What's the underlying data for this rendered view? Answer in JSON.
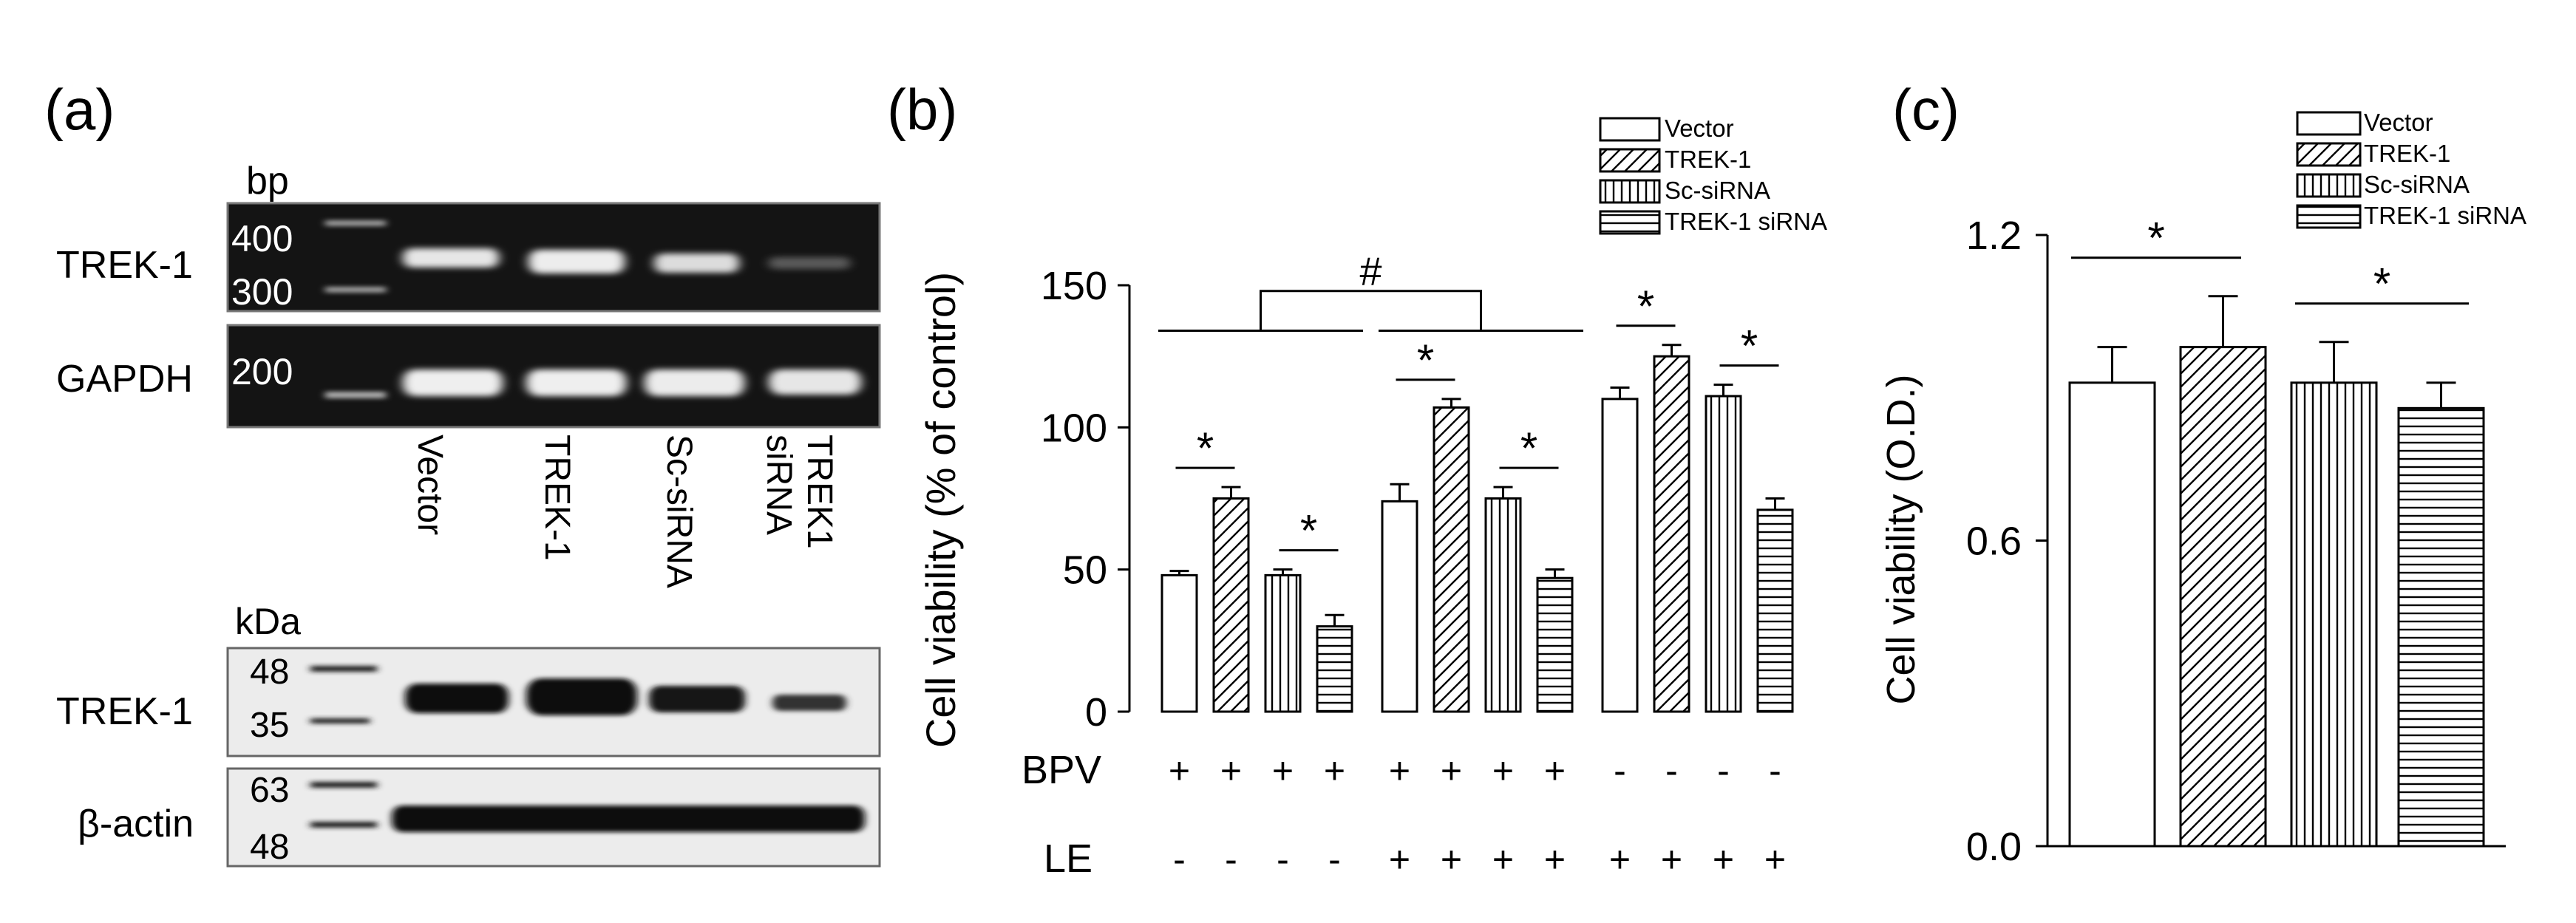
{
  "panels": {
    "a": {
      "label": "(a)",
      "pcr": {
        "unit": "bp",
        "markers": [
          "400",
          "300",
          "200"
        ],
        "rows": [
          "TREK-1",
          "GAPDH"
        ]
      },
      "lanes": [
        "Vector",
        "TREK-1",
        "Sc-siRNA",
        "TREK1\nsiRNA"
      ],
      "western": {
        "unit": "kDa",
        "markers_top": [
          "48",
          "35"
        ],
        "markers_bottom": [
          "63",
          "48"
        ],
        "rows": [
          "TREK-1",
          "β-actin"
        ]
      }
    }
  },
  "colors": {
    "ink": "#000000",
    "background": "#ffffff",
    "gel_bg": "#141414",
    "gel_band": "#e8e8e8",
    "blot_bg": "#ececec",
    "blot_band": "#111111"
  },
  "chart_data": [
    {
      "panel": "(b)",
      "type": "bar",
      "ylabel": "Cell viability (% of control)",
      "ylim": [
        0,
        150
      ],
      "yticks": [
        0,
        50,
        100,
        150
      ],
      "groups": [
        "BPV",
        "BPV + LE",
        "LE"
      ],
      "series": [
        {
          "name": "Vector",
          "pattern": "empty",
          "values": [
            48,
            74,
            110
          ],
          "errors": [
            1.5,
            6,
            4
          ]
        },
        {
          "name": "TREK-1",
          "pattern": "diagonal",
          "values": [
            75,
            107,
            125
          ],
          "errors": [
            4,
            3,
            4
          ]
        },
        {
          "name": "Sc-siRNA",
          "pattern": "vertical",
          "values": [
            48,
            75,
            111
          ],
          "errors": [
            2,
            4,
            4
          ]
        },
        {
          "name": "TREK-1 siRNA",
          "pattern": "horizontal",
          "values": [
            30,
            47,
            71
          ],
          "errors": [
            4,
            3,
            4
          ]
        }
      ],
      "treatments": [
        {
          "label": "BPV",
          "signs": [
            [
              "+",
              "+",
              "+",
              "+"
            ],
            [
              "+",
              "+",
              "+",
              "+"
            ],
            [
              "-",
              "-",
              "-",
              "-"
            ]
          ]
        },
        {
          "label": "LE",
          "signs": [
            [
              "-",
              "-",
              "-",
              "-"
            ],
            [
              "+",
              "+",
              "+",
              "+"
            ],
            [
              "+",
              "+",
              "+",
              "+"
            ]
          ]
        }
      ],
      "annotations": {
        "significance": "*",
        "between_groups": "#"
      },
      "legend_position": "top-right"
    },
    {
      "panel": "(c)",
      "type": "bar",
      "ylabel": "Cell viability (O.D.)",
      "ylim": [
        0,
        1.2
      ],
      "yticks": [
        "0.0",
        "0.6",
        "1.2"
      ],
      "series": [
        {
          "name": "Vector",
          "pattern": "empty",
          "value": 0.91,
          "error": 0.07
        },
        {
          "name": "TREK-1",
          "pattern": "diagonal",
          "value": 0.98,
          "error": 0.1
        },
        {
          "name": "Sc-siRNA",
          "pattern": "vertical",
          "value": 0.91,
          "error": 0.08
        },
        {
          "name": "TREK-1 siRNA",
          "pattern": "horizontal",
          "value": 0.86,
          "error": 0.05
        }
      ],
      "annotations": {
        "significance": "*"
      },
      "legend_position": "top-right"
    }
  ]
}
